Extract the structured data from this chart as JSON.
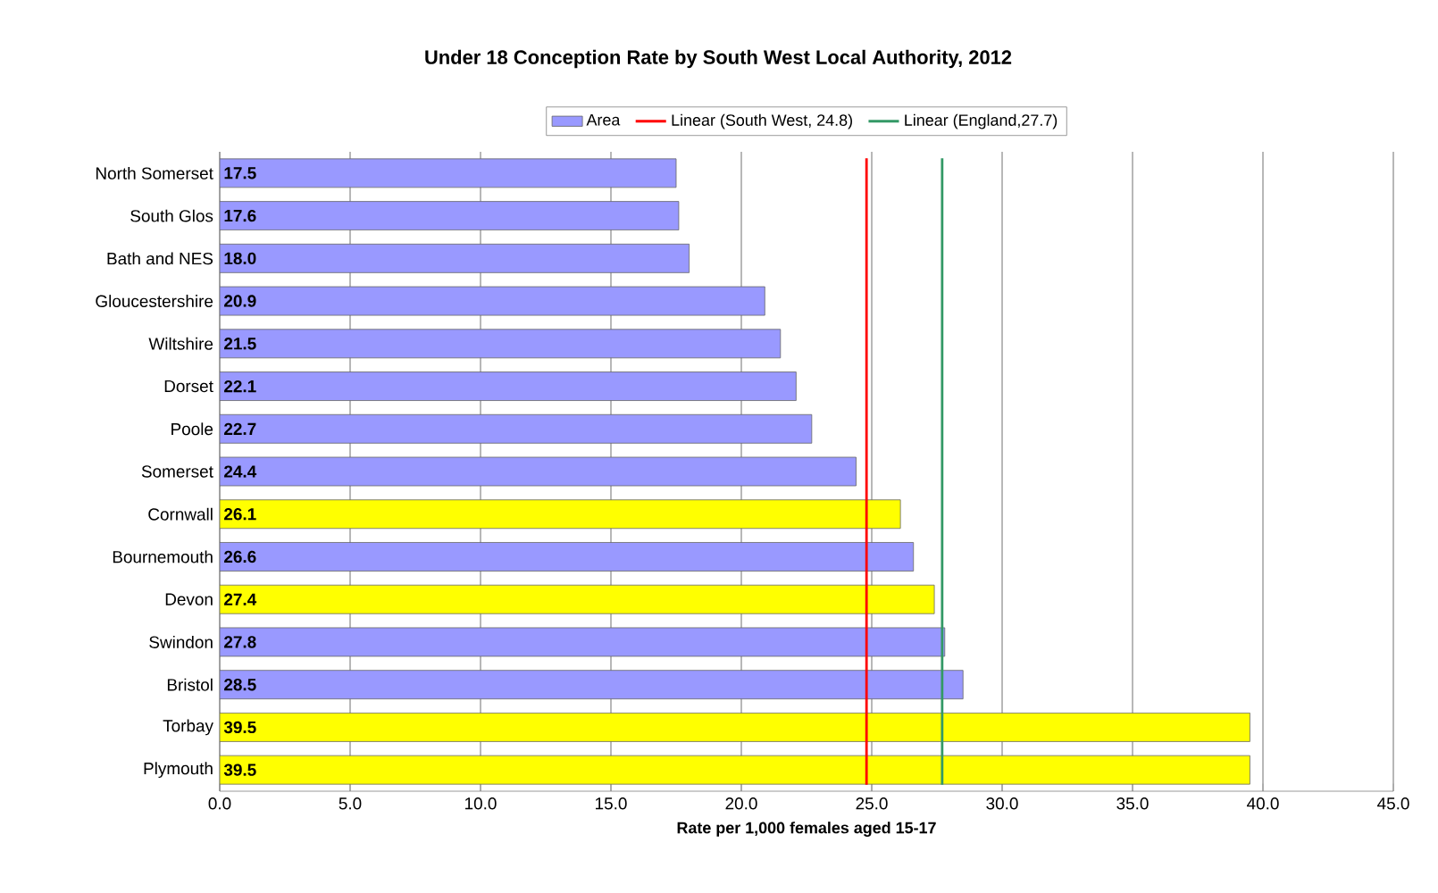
{
  "chart_data": {
    "type": "bar",
    "orientation": "horizontal",
    "title": "Under 18 Conception Rate by South West Local Authority, 2012",
    "xlabel": "Rate per 1,000 females aged 15-17",
    "categories": [
      "North Somerset",
      "South Glos",
      "Bath and NES",
      "Gloucestershire",
      "Wiltshire",
      "Dorset",
      "Poole",
      "Somerset",
      "Cornwall",
      "Bournemouth",
      "Devon",
      "Swindon",
      "Bristol",
      "Torbay",
      "Plymouth"
    ],
    "series": [
      {
        "name": "Area",
        "color": "#9999ff",
        "values": [
          17.5,
          17.6,
          18.0,
          20.9,
          21.5,
          22.1,
          22.7,
          24.4,
          26.1,
          26.6,
          27.4,
          27.8,
          28.5,
          39.5,
          39.5
        ],
        "value_labels": [
          "17.5",
          "17.6",
          "18.0",
          "20.9",
          "21.5",
          "22.1",
          "22.7",
          "24.4",
          "26.1",
          "26.6",
          "27.4",
          "27.8",
          "28.5",
          "39.5",
          "39.5"
        ],
        "colors": [
          "#9999ff",
          "#9999ff",
          "#9999ff",
          "#9999ff",
          "#9999ff",
          "#9999ff",
          "#9999ff",
          "#9999ff",
          "#ffff00",
          "#9999ff",
          "#ffff00",
          "#9999ff",
          "#9999ff",
          "#ffff00",
          "#ffff00"
        ]
      }
    ],
    "xlim": [
      0.0,
      45.0
    ],
    "xticks": [
      {
        "value": 0,
        "label": "0.0"
      },
      {
        "value": 5,
        "label": "5.0"
      },
      {
        "value": 10,
        "label": "10.0"
      },
      {
        "value": 15,
        "label": "15.0"
      },
      {
        "value": 20,
        "label": "20.0"
      },
      {
        "value": 25,
        "label": "25.0"
      },
      {
        "value": 30,
        "label": "30.0"
      },
      {
        "value": 35,
        "label": "35.0"
      },
      {
        "value": 40,
        "label": "40.0"
      },
      {
        "value": 45,
        "label": "45.0"
      }
    ],
    "ref_lines": [
      {
        "axis": "x",
        "value": 24.8,
        "label": "Linear (South West, 24.8)",
        "color": "#ff0000"
      },
      {
        "axis": "x",
        "value": 27.7,
        "label": "Linear (England,27.7)",
        "color": "#339966"
      }
    ],
    "grid": "x",
    "legend": "top"
  }
}
